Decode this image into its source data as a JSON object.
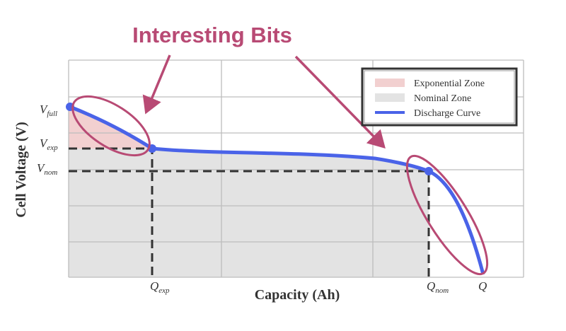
{
  "header": {
    "title": "Interesting Bits"
  },
  "legend": {
    "items": [
      "Exponential Zone",
      "Nominal Zone",
      "Discharge Curve"
    ]
  },
  "axes": {
    "y_label": "Cell Voltage (V)",
    "x_label": "Capacity (Ah)"
  },
  "y_markers": [
    {
      "symbol": "V",
      "sub": "full"
    },
    {
      "symbol": "V",
      "sub": "exp"
    },
    {
      "symbol": "V",
      "sub": "nom"
    }
  ],
  "x_markers": [
    {
      "symbol": "Q",
      "sub": "exp"
    },
    {
      "symbol": "Q",
      "sub": "nom"
    },
    {
      "symbol": "Q"
    }
  ]
}
